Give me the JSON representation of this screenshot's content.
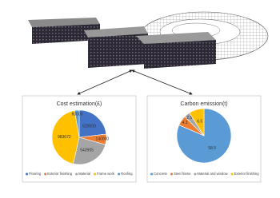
{
  "chart_data": [
    {
      "type": "pie",
      "title": "Cost estimation(£)",
      "categories": [
        "Flooring",
        "Exterior finishing",
        "Material",
        "Frame work",
        "Roofing"
      ],
      "values": [
        520000,
        140000,
        543905,
        983672,
        60000
      ],
      "colors": [
        "#4472c4",
        "#ed7d31",
        "#a5a5a5",
        "#ffc000",
        "#5b9bd5"
      ]
    },
    {
      "type": "pie",
      "title": "Carbon emission(t)",
      "categories": [
        "Concrete",
        "Steel frame",
        "Material and window",
        "Exterior finishing"
      ],
      "values": [
        58.5,
        4.3,
        2.5,
        6.5
      ],
      "colors": [
        "#5b9bd5",
        "#ed7d31",
        "#a5a5a5",
        "#ffc000"
      ]
    }
  ]
}
